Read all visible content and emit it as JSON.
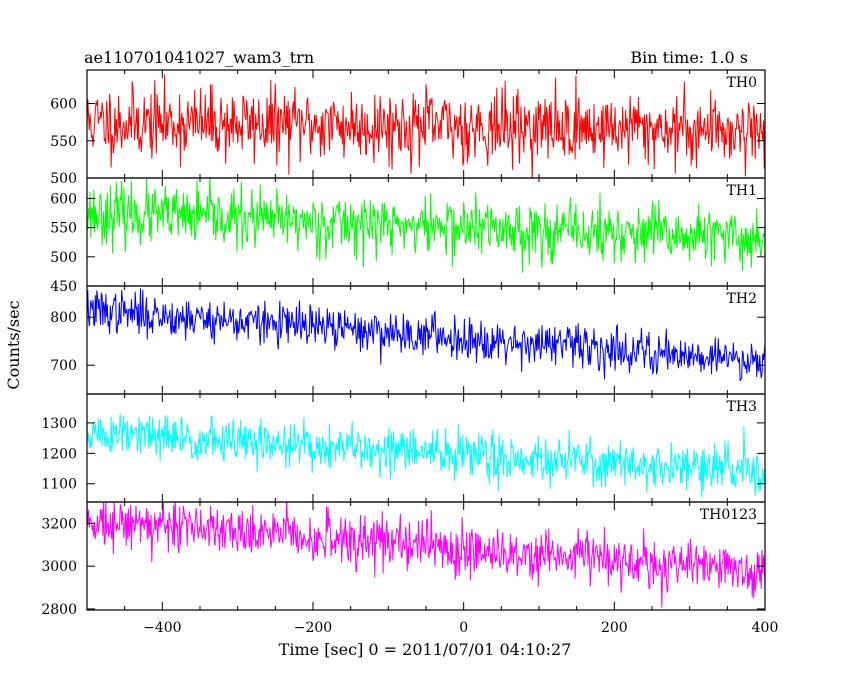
{
  "header": {
    "title": "ae110701041027_wam3_trn",
    "bin_time": "Bin time: 1.0 s"
  },
  "axes": {
    "ylabel": "Counts/sec",
    "xlabel": "Time [sec] 0 = 2011/07/01 04:10:27"
  },
  "chart_data": {
    "type": "line",
    "x_range": [
      -500,
      400
    ],
    "x_ticks": [
      -400,
      -200,
      0,
      200,
      400
    ],
    "x_tick_labels": [
      "−400",
      "−200",
      "0",
      "200",
      "400"
    ],
    "bin_seconds": 1.0,
    "series": [
      {
        "name": "TH0",
        "color": "#ff0000",
        "ylim": [
          500,
          645
        ],
        "y_ticks": [
          500,
          550,
          600
        ],
        "y_tick_labels": [
          "500",
          "550",
          "600"
        ],
        "mean_start": 575,
        "mean_end": 565,
        "noise": 24,
        "seed": 11
      },
      {
        "name": "TH1",
        "color": "#00ff00",
        "ylim": [
          450,
          635
        ],
        "y_ticks": [
          450,
          500,
          550,
          600
        ],
        "y_tick_labels": [
          "450",
          "500",
          "550",
          "600"
        ],
        "mean_start": 575,
        "mean_end": 530,
        "noise": 25,
        "seed": 23
      },
      {
        "name": "TH2",
        "color": "#0000ff",
        "ylim": [
          640,
          865
        ],
        "y_ticks": [
          700,
          800
        ],
        "y_tick_labels": [
          "700",
          "800"
        ],
        "mean_start": 815,
        "mean_end": 710,
        "noise": 22,
        "seed": 37
      },
      {
        "name": "TH3",
        "color": "#00ffff",
        "ylim": [
          1040,
          1395
        ],
        "y_ticks": [
          1100,
          1200,
          1300
        ],
        "y_tick_labels": [
          "1100",
          "1200",
          "1300"
        ],
        "mean_start": 1265,
        "mean_end": 1140,
        "noise": 38,
        "seed": 51
      },
      {
        "name": "TH0123",
        "color": "#ff00ff",
        "ylim": [
          2795,
          3300
        ],
        "y_ticks": [
          2800,
          3000,
          3200
        ],
        "y_tick_labels": [
          "2800",
          "3000",
          "3200"
        ],
        "mean_start": 3220,
        "mean_end": 2975,
        "noise": 60,
        "seed": 73
      }
    ]
  }
}
